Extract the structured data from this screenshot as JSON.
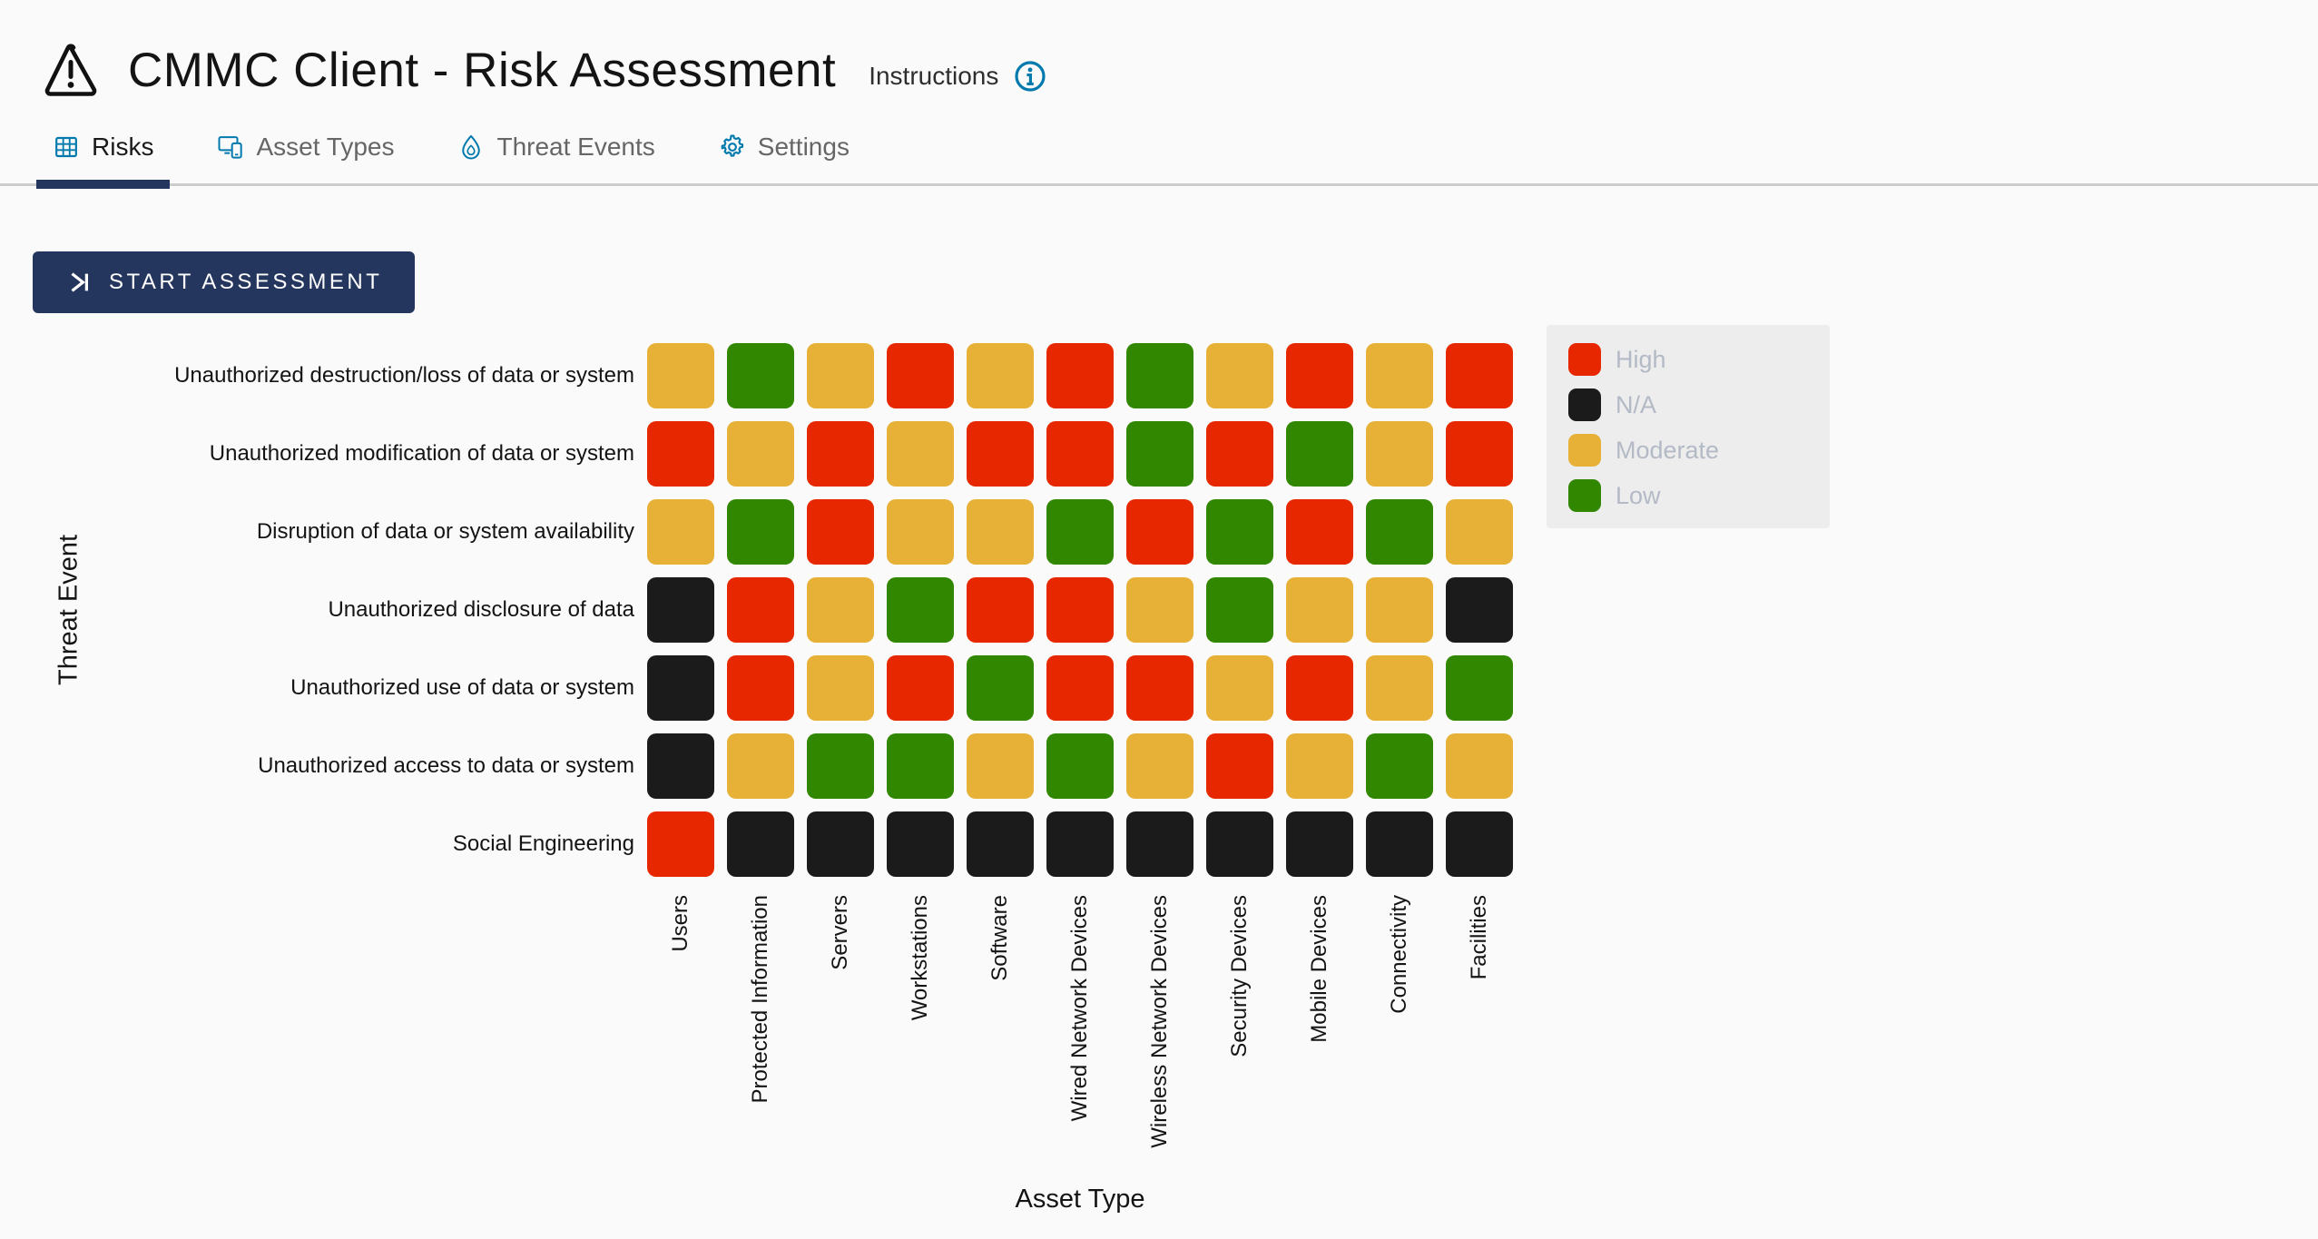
{
  "header": {
    "title": "CMMC Client - Risk Assessment",
    "instructions_label": "Instructions"
  },
  "tabs": [
    {
      "label": "Risks",
      "icon": "grid-icon",
      "active": true
    },
    {
      "label": "Asset Types",
      "icon": "devices-icon",
      "active": false
    },
    {
      "label": "Threat Events",
      "icon": "flame-icon",
      "active": false
    },
    {
      "label": "Settings",
      "icon": "gear-icon",
      "active": false
    }
  ],
  "toolbar": {
    "start_button_label": "START ASSESSMENT"
  },
  "legend": {
    "items": [
      {
        "label": "High",
        "color": "#e62700"
      },
      {
        "label": "N/A",
        "color": "#1b1b1b"
      },
      {
        "label": "Moderate",
        "color": "#e6b136"
      },
      {
        "label": "Low",
        "color": "#318700"
      }
    ]
  },
  "chart_data": {
    "type": "heatmap",
    "xlabel": "Asset Type",
    "ylabel": "Threat Event",
    "legend_position": "right",
    "x_categories": [
      "Users",
      "Protected Information",
      "Servers",
      "Workstations",
      "Software",
      "Wired Network Devices",
      "Wireless Network Devices",
      "Security Devices",
      "Mobile Devices",
      "Connectivity",
      "Facilities"
    ],
    "y_categories": [
      "Unauthorized destruction/loss of data or system",
      "Unauthorized modification of data or system",
      "Disruption of data or system availability",
      "Unauthorized disclosure of data",
      "Unauthorized use of data or system",
      "Unauthorized access to data or system",
      "Social Engineering"
    ],
    "values": [
      [
        "Moderate",
        "Low",
        "Moderate",
        "High",
        "Moderate",
        "High",
        "Low",
        "Moderate",
        "High",
        "Moderate",
        "High"
      ],
      [
        "High",
        "Moderate",
        "High",
        "Moderate",
        "High",
        "High",
        "Low",
        "High",
        "Low",
        "Moderate",
        "High"
      ],
      [
        "Moderate",
        "Low",
        "High",
        "Moderate",
        "Moderate",
        "Low",
        "High",
        "Low",
        "High",
        "Low",
        "Moderate"
      ],
      [
        "N/A",
        "High",
        "Moderate",
        "Low",
        "High",
        "High",
        "Moderate",
        "Low",
        "Moderate",
        "Moderate",
        "N/A"
      ],
      [
        "N/A",
        "High",
        "Moderate",
        "High",
        "Low",
        "High",
        "High",
        "Moderate",
        "High",
        "Moderate",
        "Low"
      ],
      [
        "N/A",
        "Moderate",
        "Low",
        "Low",
        "Moderate",
        "Low",
        "Moderate",
        "High",
        "Moderate",
        "Low",
        "Moderate"
      ],
      [
        "High",
        "N/A",
        "N/A",
        "N/A",
        "N/A",
        "N/A",
        "N/A",
        "N/A",
        "N/A",
        "N/A",
        "N/A"
      ]
    ],
    "color_map": {
      "High": "#e62700",
      "N/A": "#1b1b1b",
      "Moderate": "#e6b136",
      "Low": "#318700"
    }
  }
}
